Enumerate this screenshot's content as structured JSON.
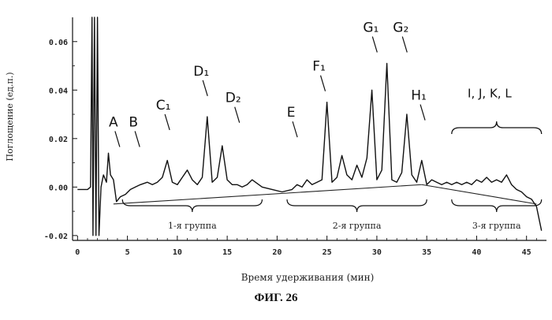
{
  "figure_caption": "ФИГ. 26",
  "chart_data": {
    "type": "line",
    "xlabel": "Время удерживания (мин)",
    "ylabel": "Поглощение (ед.п.)",
    "xlim": [
      -0.5,
      47
    ],
    "ylim": [
      -0.022,
      0.07
    ],
    "x_ticks": [
      0,
      5,
      10,
      15,
      20,
      25,
      30,
      35,
      40,
      45
    ],
    "y_ticks": [
      -0.02,
      0.0,
      0.02,
      0.04,
      0.06
    ],
    "y_tick_labels": [
      "-0.02",
      "0.00",
      "0.02",
      "0.04",
      "0.06"
    ],
    "grid": false,
    "series": [
      {
        "x": [
          0,
          1.0,
          1.3,
          1.45,
          1.55,
          1.7,
          1.85,
          2.0,
          2.15,
          2.35,
          2.6,
          2.9,
          3.1,
          3.3,
          3.6,
          3.9,
          4.3,
          4.8,
          5.3,
          5.8,
          6.3,
          7.0,
          7.5,
          8.0,
          8.5,
          9.0,
          9.5,
          10.0,
          10.5,
          11.0,
          11.5,
          12.0,
          12.5,
          13.0,
          13.5,
          14.0,
          14.5,
          15.0,
          15.5,
          16.0,
          16.5,
          17.0,
          17.5,
          18.5,
          19.5,
          20.5,
          21.5,
          22.0,
          22.5,
          23.0,
          23.5,
          24.0,
          24.5,
          25.0,
          25.5,
          26.0,
          26.5,
          27.0,
          27.5,
          28.0,
          28.5,
          29.0,
          29.5,
          30.0,
          30.5,
          31.0,
          31.5,
          32.0,
          32.5,
          33.0,
          33.5,
          34.0,
          34.5,
          35.0,
          35.5,
          36.0,
          36.5,
          37.0,
          37.5,
          38.0,
          38.5,
          39.0,
          39.5,
          40.0,
          40.5,
          41.0,
          41.5,
          42.0,
          42.5,
          43.0,
          43.5,
          44.0,
          44.5,
          45.0,
          45.5,
          46.0,
          46.5
        ],
        "y": [
          -0.001,
          -0.001,
          0.0,
          0.07,
          -0.02,
          0.07,
          -0.02,
          0.07,
          -0.02,
          0.0,
          0.005,
          0.002,
          0.014,
          0.005,
          0.003,
          -0.006,
          -0.004,
          -0.003,
          -0.001,
          0.0,
          0.001,
          0.002,
          0.001,
          0.002,
          0.004,
          0.011,
          0.002,
          0.001,
          0.004,
          0.007,
          0.003,
          0.001,
          0.004,
          0.029,
          0.002,
          0.004,
          0.017,
          0.003,
          0.001,
          0.001,
          0.0,
          0.001,
          0.003,
          0.0,
          -0.001,
          -0.002,
          -0.001,
          0.001,
          0.0,
          0.003,
          0.001,
          0.002,
          0.003,
          0.035,
          0.002,
          0.004,
          0.013,
          0.005,
          0.003,
          0.009,
          0.004,
          0.012,
          0.04,
          0.003,
          0.007,
          0.051,
          0.003,
          0.002,
          0.006,
          0.03,
          0.005,
          0.002,
          0.011,
          0.001,
          0.003,
          0.002,
          0.001,
          0.002,
          0.001,
          0.002,
          0.001,
          0.002,
          0.001,
          0.003,
          0.002,
          0.004,
          0.002,
          0.003,
          0.002,
          0.005,
          0.001,
          -0.001,
          -0.002,
          -0.004,
          -0.005,
          -0.008,
          -0.018
        ]
      }
    ],
    "baseline_segments": [
      {
        "x": [
          3.6,
          34.5
        ],
        "y": [
          -0.007,
          0.001
        ]
      },
      {
        "x": [
          34.5,
          46.0
        ],
        "y": [
          0.001,
          -0.007
        ]
      }
    ],
    "annotations": [
      {
        "text": "A",
        "x": 3.6,
        "y": 0.025
      },
      {
        "text": "B",
        "x": 5.6,
        "y": 0.025
      },
      {
        "text": "C₁",
        "x": 8.6,
        "y": 0.032
      },
      {
        "text": "D₁",
        "x": 12.4,
        "y": 0.046
      },
      {
        "text": "D₂",
        "x": 15.6,
        "y": 0.035
      },
      {
        "text": "E",
        "x": 21.4,
        "y": 0.029
      },
      {
        "text": "F₁",
        "x": 24.2,
        "y": 0.048
      },
      {
        "text": "G₁",
        "x": 29.4,
        "y": 0.064
      },
      {
        "text": "G₂",
        "x": 32.4,
        "y": 0.064
      },
      {
        "text": "H₁",
        "x": 34.2,
        "y": 0.036
      },
      {
        "text": "I, J, K, L",
        "x": 41.3,
        "y": 0.037
      }
    ],
    "group_labels": [
      {
        "text": "1-я группа",
        "x_range": [
          4.5,
          18.5
        ]
      },
      {
        "text": "2-я группа",
        "x_range": [
          21.0,
          35.0
        ]
      },
      {
        "text": "3-я группа",
        "x_range": [
          37.5,
          46.5
        ]
      }
    ],
    "upper_brace": {
      "text_ref": "I, J, K, L",
      "x_range": [
        37.5,
        46.5
      ]
    }
  }
}
